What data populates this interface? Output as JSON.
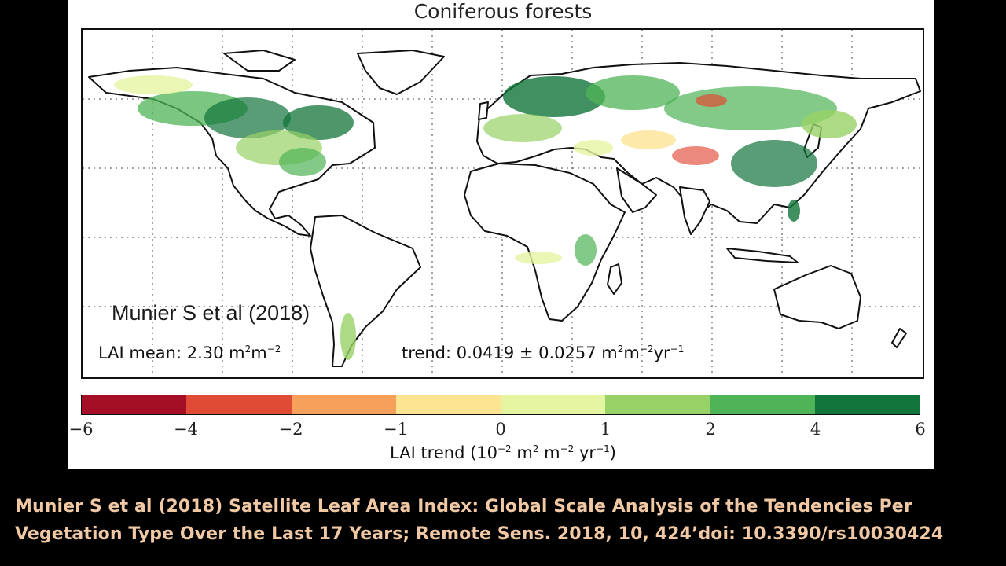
{
  "figure": {
    "title": "Coniferous forests",
    "watermark": "Munier S et al (2018)",
    "stats": {
      "mean_prefix": "LAI mean: 2.30 m",
      "mean_exp1": "2",
      "mean_mid": "m",
      "mean_exp2": "−2",
      "trend_prefix": "trend: 0.0419 ± 0.0257 m",
      "trend_exp1": "2",
      "trend_mid": "m",
      "trend_exp2": "−2",
      "trend_yr": "yr",
      "trend_exp3": "−1"
    },
    "colorbar": {
      "colors": [
        "#a50f26",
        "#e04b35",
        "#f7a05c",
        "#fde493",
        "#e5f4a0",
        "#98d266",
        "#4fb457",
        "#11743a"
      ],
      "ticks": [
        "−6",
        "−4",
        "−2",
        "−1",
        "0",
        "1",
        "2",
        "4",
        "6"
      ],
      "label_prefix": "LAI trend (10",
      "label_exp1": "−2",
      "label_mid1": " m",
      "label_exp2": "2",
      "label_mid2": " m",
      "label_exp3": "−2",
      "label_mid3": " yr",
      "label_exp4": "−1",
      "label_suffix": ")"
    }
  },
  "citation": {
    "line1": "Munier S et al (2018)  Satellite Leaf Area Index: Global Scale Analysis of the Tendencies Per",
    "line2": "Vegetation Type Over the Last 17 Years; Remote Sens. 2018, 10, 424’doi: 10.3390/rs10030424"
  }
}
